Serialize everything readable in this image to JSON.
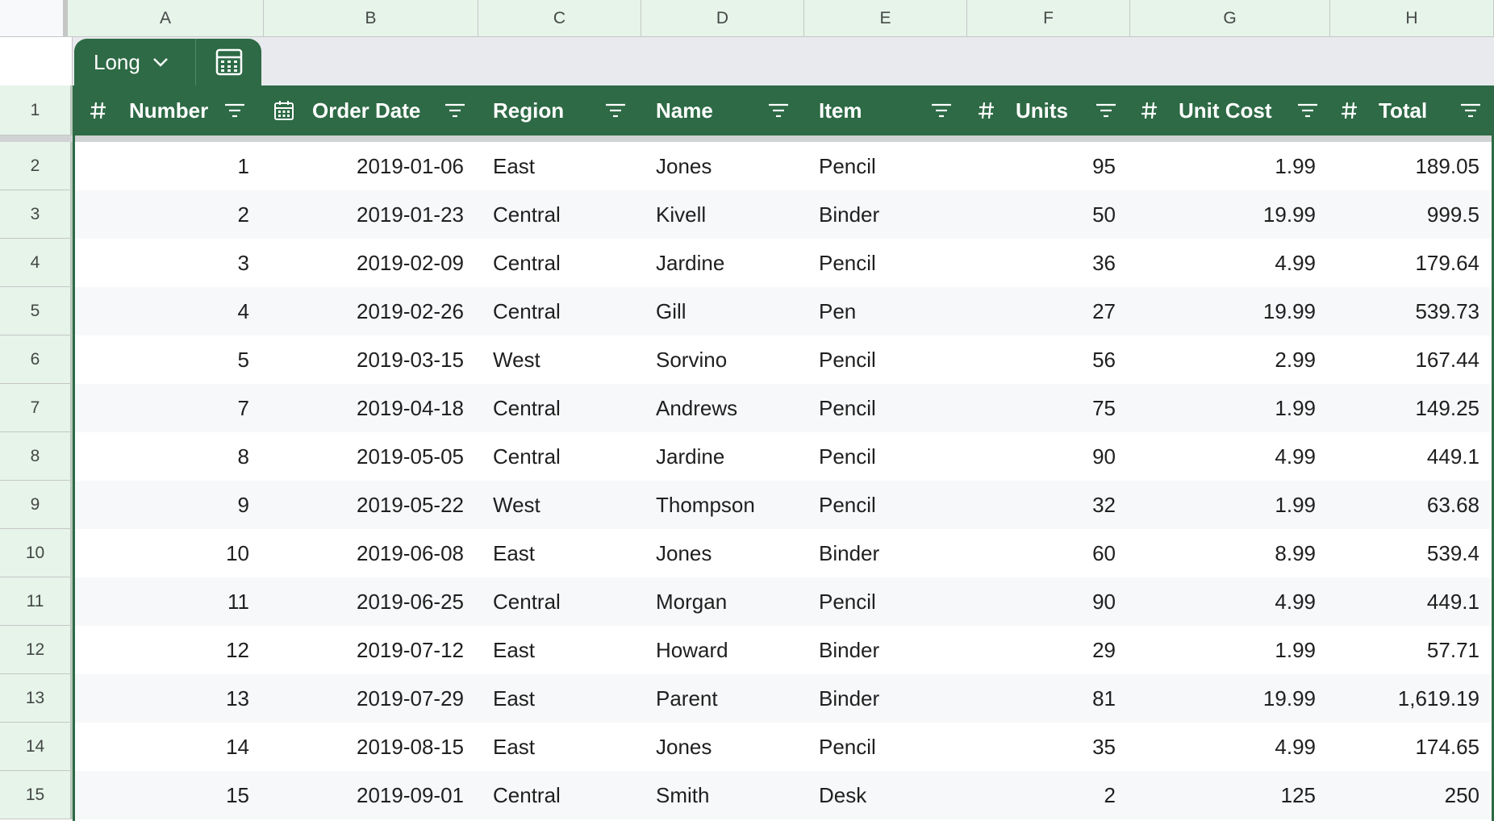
{
  "columns": [
    "A",
    "B",
    "C",
    "D",
    "E",
    "F",
    "G",
    "H"
  ],
  "table": {
    "name": "Long",
    "headers": [
      {
        "label": "Number",
        "type_icon": "hash-icon"
      },
      {
        "label": "Order Date",
        "type_icon": "calendar-icon"
      },
      {
        "label": "Region",
        "type_icon": ""
      },
      {
        "label": "Name",
        "type_icon": ""
      },
      {
        "label": "Item",
        "type_icon": ""
      },
      {
        "label": "Units",
        "type_icon": "hash-icon"
      },
      {
        "label": "Unit Cost",
        "type_icon": "hash-icon"
      },
      {
        "label": "Total",
        "type_icon": "hash-icon"
      }
    ],
    "header_row_number": "1",
    "rows": [
      {
        "row": "2",
        "cells": [
          "1",
          "2019-01-06",
          "East",
          "Jones",
          "Pencil",
          "95",
          "1.99",
          "189.05"
        ]
      },
      {
        "row": "3",
        "cells": [
          "2",
          "2019-01-23",
          "Central",
          "Kivell",
          "Binder",
          "50",
          "19.99",
          "999.5"
        ]
      },
      {
        "row": "4",
        "cells": [
          "3",
          "2019-02-09",
          "Central",
          "Jardine",
          "Pencil",
          "36",
          "4.99",
          "179.64"
        ]
      },
      {
        "row": "5",
        "cells": [
          "4",
          "2019-02-26",
          "Central",
          "Gill",
          "Pen",
          "27",
          "19.99",
          "539.73"
        ]
      },
      {
        "row": "6",
        "cells": [
          "5",
          "2019-03-15",
          "West",
          "Sorvino",
          "Pencil",
          "56",
          "2.99",
          "167.44"
        ]
      },
      {
        "row": "7",
        "cells": [
          "7",
          "2019-04-18",
          "Central",
          "Andrews",
          "Pencil",
          "75",
          "1.99",
          "149.25"
        ]
      },
      {
        "row": "8",
        "cells": [
          "8",
          "2019-05-05",
          "Central",
          "Jardine",
          "Pencil",
          "90",
          "4.99",
          "449.1"
        ]
      },
      {
        "row": "9",
        "cells": [
          "9",
          "2019-05-22",
          "West",
          "Thompson",
          "Pencil",
          "32",
          "1.99",
          "63.68"
        ]
      },
      {
        "row": "10",
        "cells": [
          "10",
          "2019-06-08",
          "East",
          "Jones",
          "Binder",
          "60",
          "8.99",
          "539.4"
        ]
      },
      {
        "row": "11",
        "cells": [
          "11",
          "2019-06-25",
          "Central",
          "Morgan",
          "Pencil",
          "90",
          "4.99",
          "449.1"
        ]
      },
      {
        "row": "12",
        "cells": [
          "12",
          "2019-07-12",
          "East",
          "Howard",
          "Binder",
          "29",
          "1.99",
          "57.71"
        ]
      },
      {
        "row": "13",
        "cells": [
          "13",
          "2019-07-29",
          "East",
          "Parent",
          "Binder",
          "81",
          "19.99",
          "1,619.19"
        ]
      },
      {
        "row": "14",
        "cells": [
          "14",
          "2019-08-15",
          "East",
          "Jones",
          "Pencil",
          "35",
          "4.99",
          "174.65"
        ]
      },
      {
        "row": "15",
        "cells": [
          "15",
          "2019-09-01",
          "Central",
          "Smith",
          "Desk",
          "2",
          "125",
          "250"
        ]
      }
    ]
  },
  "colors": {
    "table_header": "#2d6a45",
    "row_header": "#e6f4ea",
    "band": "#f6f8f9"
  }
}
